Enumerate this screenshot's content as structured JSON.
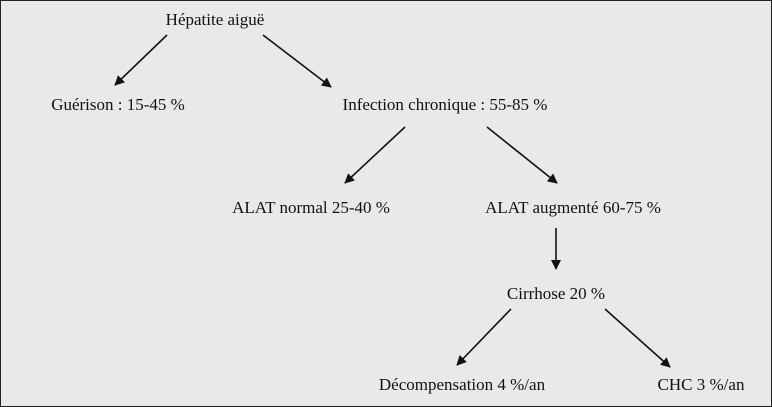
{
  "nodes": {
    "acute": "Hépatite aiguë",
    "recovery": "Guérison : 15-45 %",
    "chronic": "Infection chronique : 55-85 %",
    "alat_normal": "ALAT normal 25-40 %",
    "alat_raised": "ALAT augmenté 60-75 %",
    "cirrhosis": "Cirrhose 20 %",
    "decompensation": "Décompensation 4 %/an",
    "hcc": "CHC 3 %/an"
  },
  "edges": [
    {
      "from": "acute",
      "to": "recovery"
    },
    {
      "from": "acute",
      "to": "chronic"
    },
    {
      "from": "chronic",
      "to": "alat_normal"
    },
    {
      "from": "chronic",
      "to": "alat_raised"
    },
    {
      "from": "alat_raised",
      "to": "cirrhosis"
    },
    {
      "from": "cirrhosis",
      "to": "decompensation"
    },
    {
      "from": "cirrhosis",
      "to": "hcc"
    }
  ],
  "colors": {
    "background": "#e9e9e9",
    "border": "#222222",
    "ink": "#111111"
  }
}
